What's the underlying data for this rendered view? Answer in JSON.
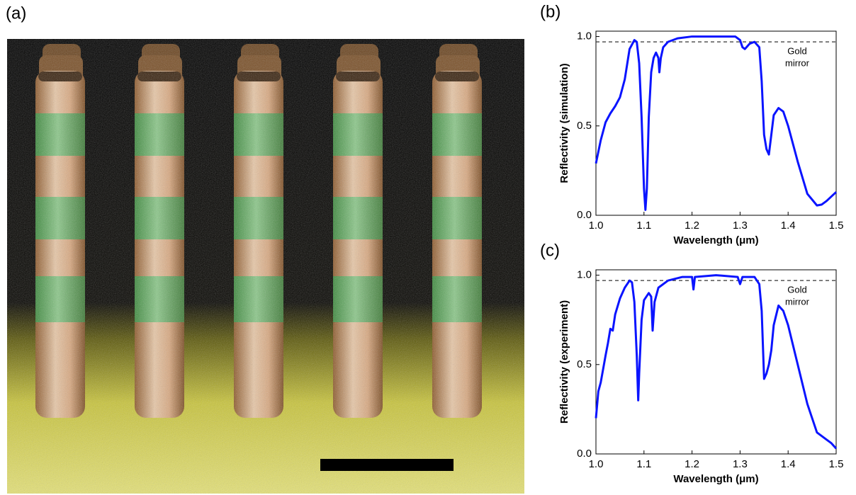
{
  "image_panel": {
    "label": "(a)"
  },
  "chart_data": [
    {
      "type": "line",
      "label": "(b)",
      "xlabel": "Wavelength (μm)",
      "ylabel": "Reflectivity (simulation)",
      "x": [
        1.0,
        1.01,
        1.02,
        1.03,
        1.04,
        1.05,
        1.06,
        1.07,
        1.08,
        1.085,
        1.09,
        1.095,
        1.1,
        1.103,
        1.106,
        1.11,
        1.115,
        1.12,
        1.125,
        1.13,
        1.132,
        1.135,
        1.14,
        1.15,
        1.17,
        1.2,
        1.25,
        1.29,
        1.3,
        1.305,
        1.31,
        1.32,
        1.33,
        1.34,
        1.345,
        1.35,
        1.355,
        1.36,
        1.365,
        1.37,
        1.38,
        1.39,
        1.4,
        1.42,
        1.44,
        1.46,
        1.47,
        1.48,
        1.5
      ],
      "values": [
        0.29,
        0.42,
        0.52,
        0.57,
        0.61,
        0.66,
        0.76,
        0.93,
        0.98,
        0.97,
        0.85,
        0.55,
        0.15,
        0.03,
        0.15,
        0.55,
        0.8,
        0.88,
        0.91,
        0.88,
        0.8,
        0.88,
        0.94,
        0.97,
        0.99,
        1.0,
        1.0,
        1.0,
        0.98,
        0.94,
        0.93,
        0.96,
        0.97,
        0.94,
        0.75,
        0.45,
        0.37,
        0.34,
        0.45,
        0.56,
        0.6,
        0.58,
        0.5,
        0.3,
        0.12,
        0.055,
        0.06,
        0.08,
        0.13
      ],
      "color": "#0a14ff",
      "xlim": [
        1.0,
        1.5
      ],
      "ylim": [
        0,
        1.03
      ],
      "xticks": [
        {
          "value": 1.0,
          "label": "1.0"
        },
        {
          "value": 1.1,
          "label": "1.1"
        },
        {
          "value": 1.2,
          "label": "1.2"
        },
        {
          "value": 1.3,
          "label": "1.3"
        },
        {
          "value": 1.4,
          "label": "1.4"
        },
        {
          "value": 1.5,
          "label": "1.5"
        }
      ],
      "yticks": [
        {
          "value": 0,
          "label": "0.0"
        },
        {
          "value": 0.5,
          "label": "0.5"
        },
        {
          "value": 1.0,
          "label": "1.0"
        }
      ],
      "reference_line": 0.97,
      "annotation": [
        "Gold",
        "mirror"
      ]
    },
    {
      "type": "line",
      "label": "(c)",
      "xlabel": "Wavelength (μm)",
      "ylabel": "Reflectivity (experiment)",
      "x": [
        1.0,
        1.005,
        1.01,
        1.02,
        1.025,
        1.03,
        1.035,
        1.04,
        1.05,
        1.06,
        1.07,
        1.075,
        1.08,
        1.085,
        1.088,
        1.09,
        1.095,
        1.1,
        1.11,
        1.115,
        1.118,
        1.122,
        1.13,
        1.15,
        1.18,
        1.2,
        1.203,
        1.206,
        1.25,
        1.295,
        1.3,
        1.305,
        1.33,
        1.34,
        1.345,
        1.35,
        1.355,
        1.36,
        1.365,
        1.37,
        1.38,
        1.39,
        1.4,
        1.42,
        1.44,
        1.46,
        1.48,
        1.49,
        1.5
      ],
      "values": [
        0.2,
        0.35,
        0.4,
        0.55,
        0.62,
        0.7,
        0.69,
        0.78,
        0.87,
        0.93,
        0.97,
        0.96,
        0.85,
        0.55,
        0.3,
        0.45,
        0.75,
        0.86,
        0.9,
        0.88,
        0.69,
        0.85,
        0.93,
        0.97,
        0.99,
        0.99,
        0.92,
        0.99,
        1.0,
        0.99,
        0.95,
        0.99,
        0.99,
        0.95,
        0.8,
        0.42,
        0.45,
        0.5,
        0.58,
        0.72,
        0.83,
        0.8,
        0.72,
        0.5,
        0.28,
        0.12,
        0.08,
        0.06,
        0.03
      ],
      "color": "#0a14ff",
      "xlim": [
        1.0,
        1.5
      ],
      "ylim": [
        0,
        1.03
      ],
      "xticks": [
        {
          "value": 1.0,
          "label": "1.0"
        },
        {
          "value": 1.1,
          "label": "1.1"
        },
        {
          "value": 1.2,
          "label": "1.2"
        },
        {
          "value": 1.3,
          "label": "1.3"
        },
        {
          "value": 1.4,
          "label": "1.4"
        },
        {
          "value": 1.5,
          "label": "1.5"
        }
      ],
      "yticks": [
        {
          "value": 0,
          "label": "0.0"
        },
        {
          "value": 0.5,
          "label": "0.5"
        },
        {
          "value": 1.0,
          "label": "1.0"
        }
      ],
      "reference_line": 0.97,
      "annotation": [
        "Gold",
        "mirror"
      ]
    }
  ]
}
